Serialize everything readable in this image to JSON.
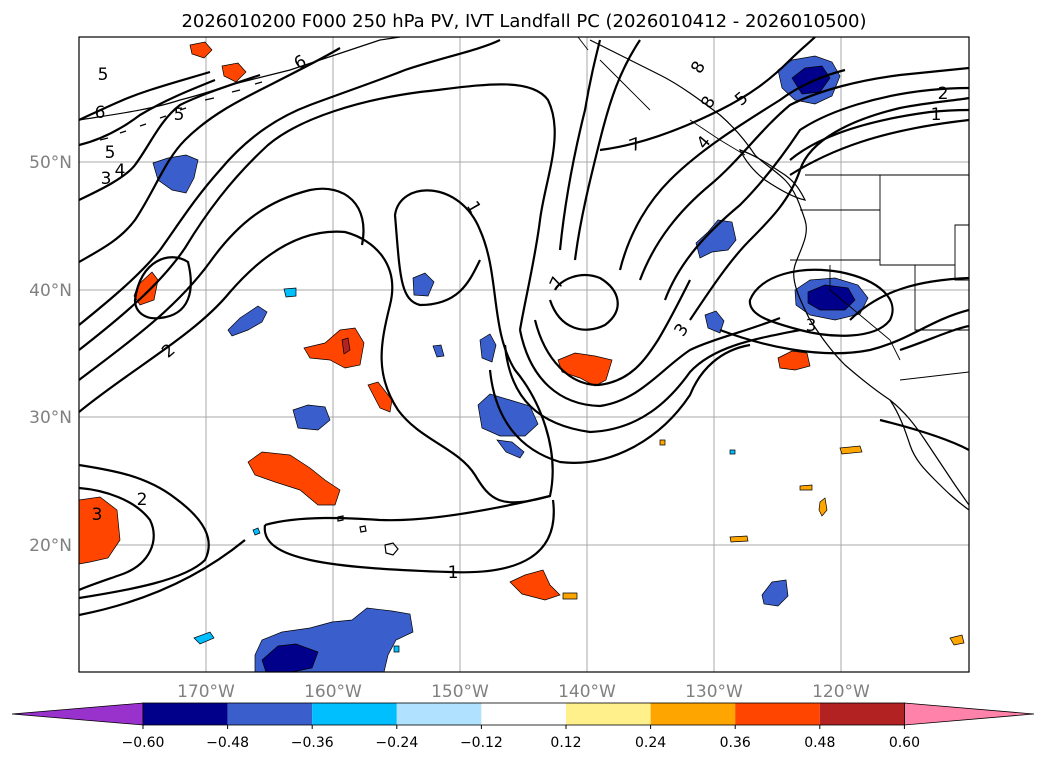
{
  "title": "2026010200 F000 250 hPa PV, IVT Landfall PC (2026010412 - 2026010500)",
  "map": {
    "lat_ticks": [
      "50°N",
      "40°N",
      "30°N",
      "20°N"
    ],
    "lon_ticks": [
      "170°W",
      "160°W",
      "150°W",
      "140°W",
      "130°W",
      "120°W"
    ],
    "contour_labels": [
      "1",
      "1",
      "1",
      "2",
      "2",
      "2",
      "3",
      "3",
      "3",
      "3",
      "4",
      "4",
      "5",
      "5",
      "5",
      "5",
      "6",
      "6",
      "7",
      "7",
      "8",
      "8"
    ]
  },
  "colorbar": {
    "colors": [
      "#9932cc",
      "#00008b",
      "#3a5fcd",
      "#00bfff",
      "#b0e2ff",
      "#ffffff",
      "#fff08c",
      "#ffa500",
      "#ff4500",
      "#b22222",
      "#ff82ab"
    ],
    "ticks": [
      "−0.60",
      "−0.48",
      "−0.36",
      "−0.24",
      "−0.12",
      "0.12",
      "0.24",
      "0.36",
      "0.48",
      "0.60"
    ]
  }
}
